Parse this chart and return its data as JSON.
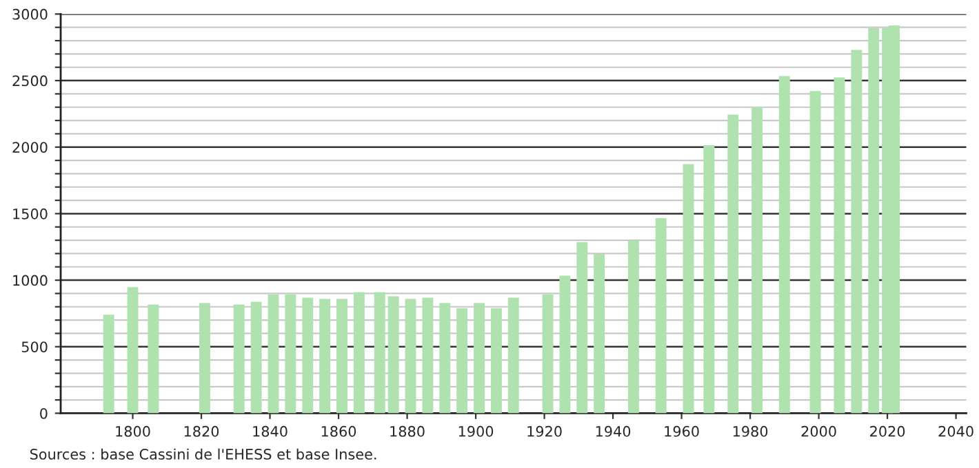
{
  "chart_data": {
    "type": "bar",
    "color": "#b0e2b0",
    "x": [
      1793,
      1800,
      1806,
      1821,
      1831,
      1836,
      1841,
      1846,
      1851,
      1856,
      1861,
      1866,
      1872,
      1876,
      1881,
      1886,
      1891,
      1896,
      1901,
      1906,
      1911,
      1921,
      1926,
      1931,
      1936,
      1946,
      1954,
      1962,
      1968,
      1975,
      1982,
      1990,
      1999,
      2006,
      2011,
      2016,
      2020,
      2022
    ],
    "values": [
      741,
      948,
      817,
      828,
      817,
      838,
      893,
      893,
      869,
      859,
      859,
      910,
      910,
      879,
      859,
      869,
      828,
      790,
      828,
      790,
      869,
      893,
      1034,
      1286,
      1197,
      1300,
      1466,
      1872,
      2014,
      2245,
      2303,
      2534,
      2421,
      2524,
      2731,
      2893,
      2893,
      2914
    ],
    "xlim": [
      1779,
      2043
    ],
    "xticks": [
      1800,
      1820,
      1840,
      1860,
      1880,
      1900,
      1920,
      1940,
      1960,
      1980,
      2000,
      2020,
      2040
    ],
    "ylim": [
      0,
      3000
    ],
    "yticks": [
      0,
      {
        "value": 100,
        "label": null
      },
      {
        "value": 200,
        "label": null
      },
      {
        "value": 300,
        "label": null
      },
      {
        "value": 400,
        "label": null
      },
      500,
      {
        "value": 600,
        "label": null
      },
      {
        "value": 700,
        "label": null
      },
      {
        "value": 800,
        "label": null
      },
      {
        "value": 900,
        "label": null
      },
      1000,
      {
        "value": 1100,
        "label": null
      },
      {
        "value": 1200,
        "label": null
      },
      {
        "value": 1300,
        "label": null
      },
      {
        "value": 1400,
        "label": null
      },
      1500,
      {
        "value": 1600,
        "label": null
      },
      {
        "value": 1700,
        "label": null
      },
      {
        "value": 1800,
        "label": null
      },
      {
        "value": 1900,
        "label": null
      },
      2000,
      {
        "value": 2100,
        "label": null
      },
      {
        "value": 2200,
        "label": null
      },
      {
        "value": 2300,
        "label": null
      },
      {
        "value": 2400,
        "label": null
      },
      2500,
      {
        "value": 2600,
        "label": null
      },
      {
        "value": 2700,
        "label": null
      },
      {
        "value": 2800,
        "label": null
      },
      {
        "value": 2900,
        "label": null
      },
      3000
    ],
    "grid": "y",
    "annotations": [
      "Sources : base Cassini de l'EHESS et base Insee."
    ]
  }
}
